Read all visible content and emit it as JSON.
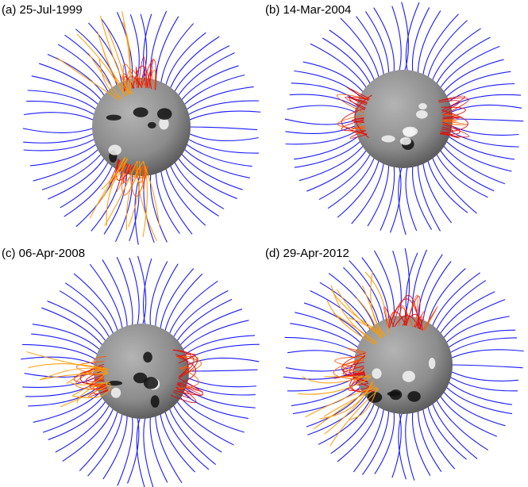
{
  "panels": [
    {
      "label": "(a) 25-Jul-1999"
    },
    {
      "label": "(b) 14-Mar-2004"
    },
    {
      "label": "(c) 06-Apr-2008"
    },
    {
      "label": "(d) 29-Apr-2012"
    }
  ]
}
